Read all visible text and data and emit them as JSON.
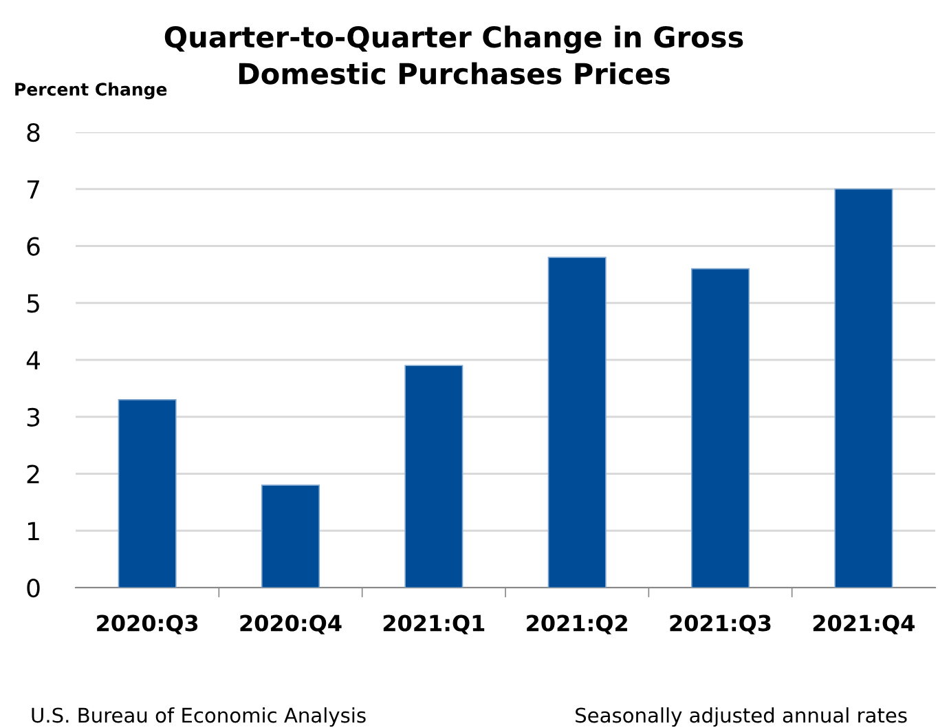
{
  "chart_data": {
    "type": "bar",
    "title": "Quarter-to-Quarter Change in Gross\nDomestic Purchases Prices",
    "ylabel": "Percent Change",
    "categories": [
      "2020:Q3",
      "2020:Q4",
      "2021:Q1",
      "2021:Q2",
      "2021:Q3",
      "2021:Q4"
    ],
    "values": [
      3.3,
      1.8,
      3.9,
      5.8,
      5.6,
      7.0
    ],
    "color": "#004c97",
    "ylim": [
      0,
      8
    ],
    "yticks": [
      0,
      1,
      2,
      3,
      4,
      5,
      6,
      7,
      8
    ],
    "grid": "y",
    "annotations": [
      "U.S. Bureau of Economic Analysis",
      "Seasonally adjusted annual rates"
    ]
  }
}
